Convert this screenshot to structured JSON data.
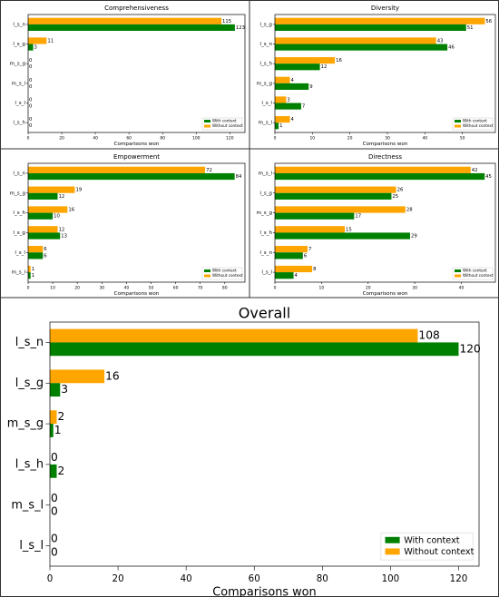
{
  "chart_data": [
    {
      "type": "bar",
      "orientation": "horizontal",
      "title": "Comprehensiveness",
      "x_label": "Comparisons won",
      "categories": [
        "l_s_n",
        "l_s_g",
        "m_s_g",
        "m_s_l",
        "l_s_l",
        "l_s_h"
      ],
      "series": [
        {
          "name": "With context",
          "color": "#008000",
          "values": [
            123,
            3,
            0,
            0,
            0,
            0
          ]
        },
        {
          "name": "Without context",
          "color": "#ffa500",
          "values": [
            115,
            11,
            0,
            0,
            0,
            0
          ]
        }
      ],
      "xlim": [
        0,
        129
      ],
      "xticks": [
        0,
        20,
        40,
        60,
        80,
        100,
        120
      ],
      "legend": "lower right"
    },
    {
      "type": "bar",
      "orientation": "horizontal",
      "title": "Diversity",
      "x_label": "Comparisons won",
      "categories": [
        "l_s_g",
        "l_s_n",
        "l_s_h",
        "m_s_g",
        "l_s_l",
        "m_s_l"
      ],
      "series": [
        {
          "name": "With context",
          "color": "#008000",
          "values": [
            51,
            46,
            12,
            9,
            7,
            1
          ]
        },
        {
          "name": "Without context",
          "color": "#ffa500",
          "values": [
            56,
            43,
            16,
            4,
            3,
            4
          ]
        }
      ],
      "xlim": [
        0,
        58.8
      ],
      "xticks": [
        0,
        10,
        20,
        30,
        40,
        50
      ],
      "legend": "lower right"
    },
    {
      "type": "bar",
      "orientation": "horizontal",
      "title": "Empowerment",
      "x_label": "Comparisons won",
      "categories": [
        "l_s_n",
        "m_s_g",
        "l_s_h",
        "l_s_g",
        "l_s_l",
        "m_s_l"
      ],
      "series": [
        {
          "name": "With context",
          "color": "#008000",
          "values": [
            84,
            12,
            10,
            13,
            6,
            1
          ]
        },
        {
          "name": "Without context",
          "color": "#ffa500",
          "values": [
            72,
            19,
            16,
            12,
            6,
            1
          ]
        }
      ],
      "xlim": [
        0,
        88.2
      ],
      "xticks": [
        0,
        10,
        20,
        30,
        40,
        50,
        60,
        70,
        80
      ],
      "legend": "lower right"
    },
    {
      "type": "bar",
      "orientation": "horizontal",
      "title": "Directness",
      "x_label": "Comparisons won",
      "categories": [
        "m_s_l",
        "l_s_g",
        "m_s_g",
        "l_s_h",
        "l_s_n",
        "l_s_l"
      ],
      "series": [
        {
          "name": "With context",
          "color": "#008000",
          "values": [
            45,
            25,
            17,
            29,
            6,
            4
          ]
        },
        {
          "name": "Without context",
          "color": "#ffa500",
          "values": [
            42,
            26,
            28,
            15,
            7,
            8
          ]
        }
      ],
      "xlim": [
        0,
        47.3
      ],
      "xticks": [
        0,
        10,
        20,
        30,
        40
      ],
      "legend": "lower right"
    },
    {
      "type": "bar",
      "orientation": "horizontal",
      "title": "Overall",
      "x_label": "Comparisons won",
      "categories": [
        "l_s_n",
        "l_s_g",
        "m_s_g",
        "l_s_h",
        "m_s_l",
        "l_s_l"
      ],
      "series": [
        {
          "name": "With context",
          "color": "#008000",
          "values": [
            120,
            3,
            1,
            2,
            0,
            0
          ]
        },
        {
          "name": "Without context",
          "color": "#ffa500",
          "values": [
            108,
            16,
            2,
            0,
            0,
            0
          ]
        }
      ],
      "xlim": [
        0,
        126
      ],
      "xticks": [
        0,
        20,
        40,
        60,
        80,
        100,
        120
      ],
      "legend": "lower right"
    }
  ]
}
